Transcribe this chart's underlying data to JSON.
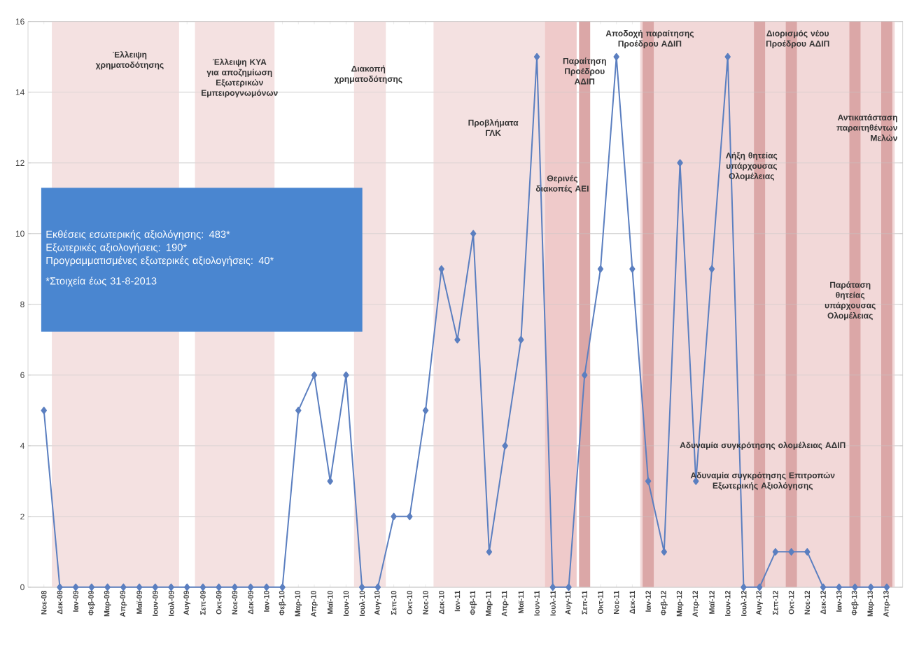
{
  "chart_data": {
    "type": "line",
    "categories": [
      "Νοε-08",
      "Δεκ-08",
      "Ιαν-09",
      "Φεβ-09",
      "Μαρ-09",
      "Απρ-09",
      "Μαϊ-09",
      "Ιουν-09",
      "Ιουλ-09",
      "Αυγ-09",
      "Σεπ-09",
      "Οκτ-09",
      "Νοε-09",
      "Δεκ-09",
      "Ιαν-10",
      "Φεβ-10",
      "Μαρ-10",
      "Απρ-10",
      "Μαϊ-10",
      "Ιουν-10",
      "Ιουλ-10",
      "Αυγ-10",
      "Σεπ-10",
      "Οκτ-10",
      "Νοε-10",
      "Δεκ-10",
      "Ιαν-11",
      "Φεβ-11",
      "Μαρ-11",
      "Απρ-11",
      "Μαϊ-11",
      "Ιουν-11",
      "Ιουλ-11",
      "Αυγ-11",
      "Σεπ-11",
      "Οκτ-11",
      "Νοε-11",
      "Δεκ-11",
      "Ιαν-12",
      "Φεβ-12",
      "Μαρ-12",
      "Απρ-12",
      "Μαϊ-12",
      "Ιουν-12",
      "Ιουλ-12",
      "Αυγ-12",
      "Σεπ-12",
      "Οκτ-12",
      "Νοε-12",
      "Δεκ-12",
      "Ιαν-13",
      "Φεβ-13",
      "Μαρ-13",
      "Απρ-13"
    ],
    "series": [
      {
        "color": "#5b7fc0",
        "values": [
          5,
          0,
          0,
          0,
          0,
          0,
          0,
          0,
          0,
          0,
          0,
          0,
          0,
          0,
          0,
          0,
          5,
          6,
          3,
          6,
          0,
          0,
          2,
          2,
          5,
          9,
          7,
          10,
          1,
          4,
          7,
          15,
          0,
          0,
          6,
          9,
          15,
          9,
          3,
          1,
          12,
          3,
          9,
          15,
          0,
          0,
          1,
          1,
          1,
          0,
          0,
          0,
          0,
          0
        ]
      }
    ],
    "ylim": [
      0,
      16
    ],
    "yticks": [
      0,
      2,
      4,
      6,
      8,
      10,
      12,
      14,
      16
    ],
    "grid": "y",
    "marker": "diamond",
    "line_style": "solid",
    "bands": [
      {
        "axis": "x",
        "from": "Δεκ-08",
        "to": "Ιουλ-09",
        "color": "#f4e1e1"
      },
      {
        "axis": "x",
        "from": "Σεπ-09",
        "to": "Ιαν-10",
        "color": "#f4e1e1"
      },
      {
        "axis": "x",
        "from": "Ιουλ-10",
        "to": "Αυγ-10",
        "color": "#f4e1e1"
      },
      {
        "axis": "x",
        "from": "Δεκ-10",
        "to": "Ιουν-11",
        "color": "#f4e1e1"
      },
      {
        "axis": "x",
        "from": "Ιουλ-11",
        "to": "Αυγ-11",
        "color": "#efcaca"
      },
      {
        "axis": "x",
        "from": "Ιαν-12",
        "to": "Απρ-13",
        "color": "#f2d8d8"
      },
      {
        "axis": "x",
        "from": "Σεπ-11",
        "to": "Σεπ-11",
        "color": "#dba7a7"
      },
      {
        "axis": "x",
        "from": "Ιαν-12",
        "to": "Ιαν-12",
        "color": "#dba7a7"
      },
      {
        "axis": "x",
        "from": "Αυγ-12",
        "to": "Αυγ-12",
        "color": "#dba7a7"
      },
      {
        "axis": "x",
        "from": "Οκτ-12",
        "to": "Οκτ-12",
        "color": "#dba7a7"
      },
      {
        "axis": "x",
        "from": "Φεβ-13",
        "to": "Φεβ-13",
        "color": "#dba7a7"
      },
      {
        "axis": "x",
        "from": "Απρ-13",
        "to": "Απρ-13",
        "color": "#dba7a7"
      }
    ],
    "annotations": [
      "Έλλειψη χρηματοδότησης",
      "Έλλειψη ΚΥΑ για αποζημίωση Εξωτερικών Εμπειρογνωμόνων",
      "Διακοπή χρηματοδότησης",
      "Προβλήματα ΓΛΚ",
      "Θερινές διακοπές ΑΕΙ",
      "Παραίτηση Προέδρου ΑΔΙΠ",
      "Αποδοχή παραίτησης Προέδρου ΑΔΙΠ",
      "Λήξη θητείας υπάρχουσας Ολομέλειας",
      "Διορισμός νέου Προέδρου ΑΔΙΠ",
      "Αντικατάσταση παραιτηθέντων Μελών",
      "Παράταση θητείας υπάρχουσας Ολομέλειας",
      "Αδυναμία συγκρότησης ολομέλειας ΑΔΙΠ",
      "Αδυναμία συγκρότησης Επιτροπών Εξωτερικής Αξιολόγησης",
      "Εκθέσεις εσωτερικής αξιολόγησης: 483*",
      "Εξωτερικές αξιολογήσεις: 190*",
      "Προγραμματισμένες εξωτερικές αξιολογήσεις: 40*",
      "*Στοιχεία έως 31-8-2013"
    ]
  }
}
